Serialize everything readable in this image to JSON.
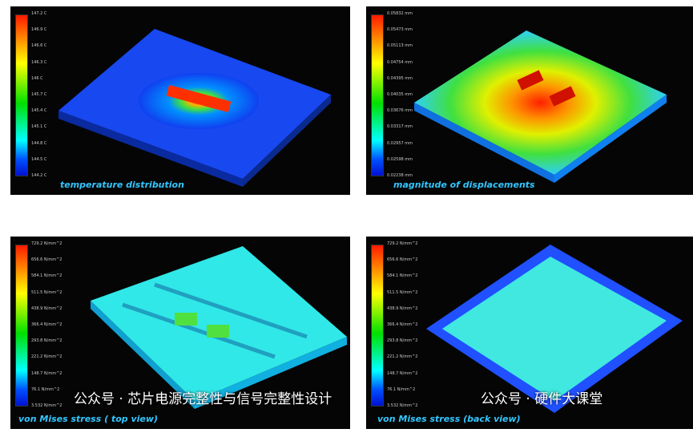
{
  "panels": [
    {
      "caption": "temperature distribution",
      "ticks": [
        "147.2 C",
        "146.9 C",
        "146.6 C",
        "146.3 C",
        "146 C",
        "145.7 C",
        "145.4 C",
        "145.1 C",
        "144.8 C",
        "144.5 C",
        "144.2 C"
      ]
    },
    {
      "caption": "magnitude of displacements",
      "ticks": [
        "0.05832 mm",
        "0.05473 mm",
        "0.05113 mm",
        "0.04754 mm",
        "0.04395 mm",
        "0.04035 mm",
        "0.03676 mm",
        "0.03317 mm",
        "0.02957 mm",
        "0.02598 mm",
        "0.02238 mm"
      ]
    },
    {
      "caption": "von Mises stress ( top view)",
      "ticks": [
        "729.2 N/mm^2",
        "656.6 N/mm^2",
        "584.1 N/mm^2",
        "511.5 N/mm^2",
        "438.9 N/mm^2",
        "366.4 N/mm^2",
        "293.8 N/mm^2",
        "221.2 N/mm^2",
        "148.7 N/mm^2",
        "76.1 N/mm^2",
        "3.532 N/mm^2"
      ]
    },
    {
      "caption": "von Mises stress (back view)",
      "ticks": [
        "729.2 N/mm^2",
        "656.6 N/mm^2",
        "584.1 N/mm^2",
        "511.5 N/mm^2",
        "438.9 N/mm^2",
        "366.4 N/mm^2",
        "293.8 N/mm^2",
        "221.2 N/mm^2",
        "148.7 N/mm^2",
        "76.1 N/mm^2",
        "3.532 N/mm^2"
      ]
    }
  ],
  "watermarks": [
    "公众号 · 芯片电源完整性与信号完整性设计",
    "公众号 · 硬件大课堂"
  ]
}
